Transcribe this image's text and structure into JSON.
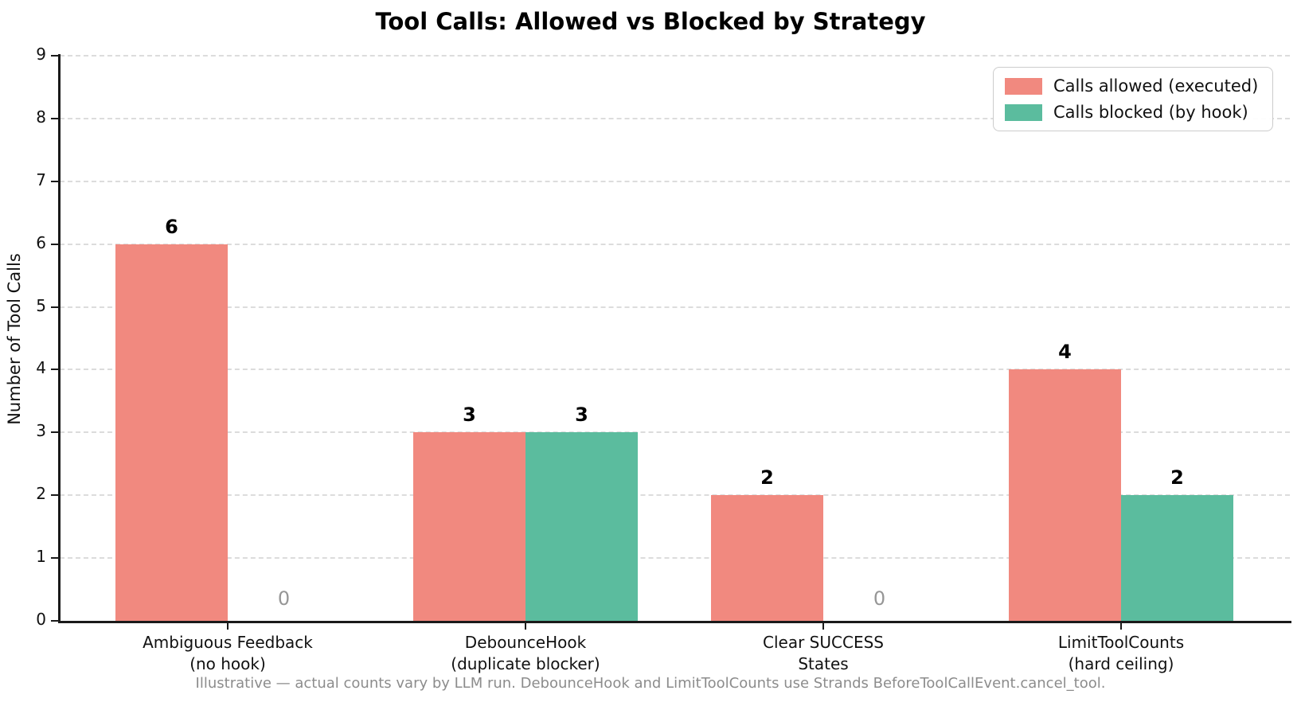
{
  "title": "Tool Calls: Allowed vs Blocked by Strategy",
  "footer_note": "Illustrative — actual counts vary by LLM run. DebounceHook and LimitToolCounts use Strands BeforeToolCallEvent.cancel_tool.",
  "legend": {
    "items": [
      {
        "label": "Calls allowed (executed)",
        "color": "#f1897f"
      },
      {
        "label": "Calls blocked (by hook)",
        "color": "#5bbc9e"
      }
    ],
    "position": "upper right"
  },
  "colors": {
    "allowed": "#f1897f",
    "blocked": "#5bbc9e",
    "grid": "#dcdcdc",
    "axis": "#1a1a1a",
    "zero_label": "#969696",
    "footer": "#8c8c8c"
  },
  "chart_data": {
    "type": "bar",
    "title": "Tool Calls: Allowed vs Blocked by Strategy",
    "xlabel": "",
    "ylabel": "Number of Tool Calls",
    "ylim": [
      0,
      9
    ],
    "yticks": [
      0,
      1,
      2,
      3,
      4,
      5,
      6,
      7,
      8,
      9
    ],
    "grid": "horizontal, dashed",
    "legend_position": "upper right",
    "categories": [
      "Ambiguous Feedback\n(no hook)",
      "DebounceHook\n(duplicate blocker)",
      "Clear SUCCESS\nStates",
      "LimitToolCounts\n(hard ceiling)"
    ],
    "series": [
      {
        "name": "Calls allowed (executed)",
        "color": "#f1897f",
        "values": [
          6,
          3,
          2,
          4
        ]
      },
      {
        "name": "Calls blocked (by hook)",
        "color": "#5bbc9e",
        "values": [
          0,
          3,
          0,
          2
        ]
      }
    ],
    "bar_value_labels": true,
    "zero_values_shown_as_gray_text": true
  }
}
